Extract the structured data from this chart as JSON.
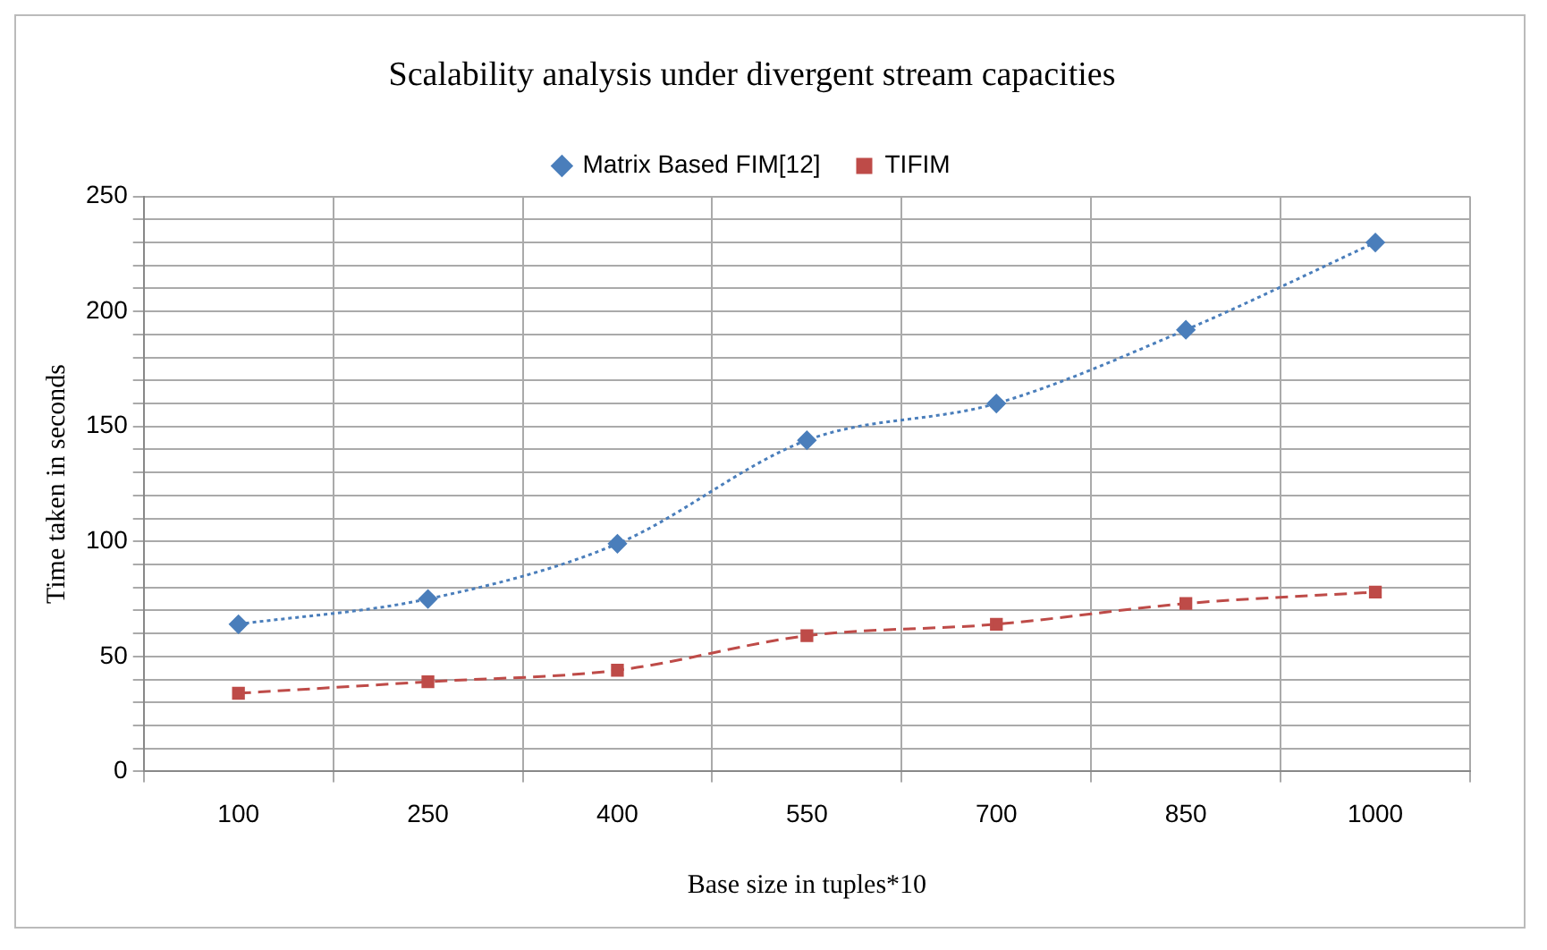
{
  "chart_data": {
    "type": "line",
    "title": "Scalability analysis under divergent stream capacities",
    "xlabel": "Base size in tuples*10",
    "ylabel": "Time taken in seconds",
    "categories": [
      "100",
      "250",
      "400",
      "550",
      "700",
      "850",
      "1000"
    ],
    "series": [
      {
        "name": "Matrix Based FIM[12]",
        "color": "#4a7ebb",
        "values": [
          64,
          75,
          99,
          144,
          160,
          192,
          230
        ],
        "marker": "diamond",
        "line_style": "dotted"
      },
      {
        "name": "TIFIM",
        "color": "#be4b48",
        "values": [
          34,
          39,
          44,
          59,
          64,
          73,
          78
        ],
        "marker": "square",
        "line_style": "dashed"
      }
    ],
    "ylim": [
      0,
      250
    ],
    "yticks": [
      0,
      {
        "value": 10,
        "label": null
      },
      {
        "value": 20,
        "label": null
      },
      {
        "value": 30,
        "label": null
      },
      {
        "value": 40,
        "label": null
      },
      50,
      {
        "value": 60,
        "label": null
      },
      {
        "value": 70,
        "label": null
      },
      {
        "value": 80,
        "label": null
      },
      {
        "value": 90,
        "label": null
      },
      100,
      {
        "value": 110,
        "label": null
      },
      {
        "value": 120,
        "label": null
      },
      {
        "value": 130,
        "label": null
      },
      {
        "value": 140,
        "label": null
      },
      150,
      {
        "value": 160,
        "label": null
      },
      {
        "value": 170,
        "label": null
      },
      {
        "value": 180,
        "label": null
      },
      {
        "value": 190,
        "label": null
      },
      200,
      {
        "value": 210,
        "label": null
      },
      {
        "value": 220,
        "label": null
      },
      {
        "value": 230,
        "label": null
      },
      {
        "value": 240,
        "label": null
      },
      250
    ],
    "grid": true,
    "legend": "top"
  }
}
